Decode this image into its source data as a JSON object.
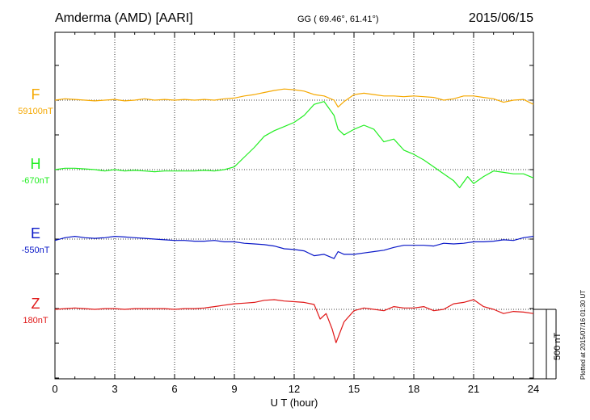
{
  "header": {
    "station": "Amderma (AMD)  [AARI]",
    "coords": "GG ( 69.46°,  61.41°)",
    "date": "2015/06/15"
  },
  "footer": {
    "plotted": "Plotted at 2015/07/16 01:30 UT"
  },
  "scale_bar": {
    "label": "500 nT",
    "value_nT": 500
  },
  "chart_data": {
    "type": "line",
    "xlabel": "U T (hour)",
    "xlim": [
      0,
      24
    ],
    "x_ticks": [
      "0",
      "3",
      "6",
      "9",
      "12",
      "15",
      "18",
      "21",
      "24"
    ],
    "grid": true,
    "y_unit": "nT",
    "series": [
      {
        "name": "F",
        "baseline_label": "59100nT",
        "baseline": 59100,
        "color": "#f5a800",
        "x": [
          0,
          0.5,
          1,
          1.5,
          2,
          2.5,
          3,
          3.5,
          4,
          4.5,
          5,
          5.5,
          6,
          6.5,
          7,
          7.5,
          8,
          8.5,
          9,
          9.5,
          10,
          10.5,
          11,
          11.5,
          12,
          12.5,
          13,
          13.5,
          14,
          14.2,
          14.5,
          15,
          15.5,
          16,
          16.5,
          17,
          17.5,
          18,
          18.5,
          19,
          19.5,
          20,
          20.5,
          21,
          21.5,
          22,
          22.5,
          23,
          23.5,
          24
        ],
        "y": [
          59100,
          59110,
          59105,
          59100,
          59095,
          59100,
          59105,
          59095,
          59100,
          59110,
          59100,
          59105,
          59100,
          59105,
          59100,
          59105,
          59100,
          59110,
          59115,
          59130,
          59140,
          59155,
          59170,
          59180,
          59175,
          59165,
          59140,
          59130,
          59100,
          59050,
          59090,
          59140,
          59150,
          59140,
          59130,
          59130,
          59125,
          59130,
          59125,
          59120,
          59100,
          59110,
          59130,
          59130,
          59120,
          59110,
          59085,
          59100,
          59105,
          59070
        ]
      },
      {
        "name": "H",
        "baseline_label": "-670nT",
        "baseline": -670,
        "color": "#22ee22",
        "x": [
          0,
          0.5,
          1,
          1.5,
          2,
          2.5,
          3,
          3.5,
          4,
          4.5,
          5,
          5.5,
          6,
          6.5,
          7,
          7.5,
          8,
          8.5,
          9,
          9.5,
          10,
          10.5,
          11,
          11.5,
          12,
          12.5,
          13,
          13.5,
          14,
          14.2,
          14.5,
          15,
          15.5,
          16,
          16.5,
          17,
          17.5,
          18,
          18.5,
          19,
          19.5,
          20,
          20.3,
          20.7,
          21,
          21.5,
          22,
          22.5,
          23,
          23.5,
          24
        ],
        "y": [
          -670,
          -660,
          -660,
          -665,
          -670,
          -680,
          -670,
          -680,
          -675,
          -680,
          -685,
          -680,
          -680,
          -680,
          -680,
          -675,
          -680,
          -670,
          -650,
          -580,
          -510,
          -430,
          -390,
          -360,
          -330,
          -280,
          -200,
          -180,
          -280,
          -380,
          -420,
          -380,
          -350,
          -380,
          -470,
          -450,
          -530,
          -560,
          -600,
          -650,
          -700,
          -750,
          -800,
          -720,
          -770,
          -720,
          -680,
          -690,
          -700,
          -700,
          -730
        ]
      },
      {
        "name": "E",
        "baseline_label": "-550nT",
        "baseline": -550,
        "color": "#0a18c8",
        "x": [
          0,
          0.5,
          1,
          1.5,
          2,
          2.5,
          3,
          3.5,
          4,
          4.5,
          5,
          5.5,
          6,
          6.5,
          7,
          7.5,
          8,
          8.5,
          9,
          9.5,
          10,
          10.5,
          11,
          11.5,
          12,
          12.5,
          13,
          13.5,
          14,
          14.2,
          14.5,
          15,
          15.5,
          16,
          16.5,
          17,
          17.5,
          18,
          18.5,
          19,
          19.5,
          20,
          20.5,
          21,
          21.5,
          22,
          22.5,
          23,
          23.5,
          24
        ],
        "y": [
          -560,
          -540,
          -530,
          -540,
          -545,
          -540,
          -530,
          -535,
          -540,
          -545,
          -550,
          -555,
          -560,
          -560,
          -565,
          -565,
          -560,
          -570,
          -570,
          -580,
          -585,
          -590,
          -600,
          -620,
          -625,
          -635,
          -670,
          -660,
          -690,
          -640,
          -660,
          -660,
          -650,
          -640,
          -630,
          -610,
          -595,
          -595,
          -595,
          -600,
          -580,
          -585,
          -580,
          -570,
          -570,
          -565,
          -555,
          -560,
          -540,
          -530
        ]
      },
      {
        "name": "Z",
        "baseline_label": "180nT",
        "baseline": 180,
        "color": "#e01818",
        "x": [
          0,
          0.5,
          1,
          1.5,
          2,
          2.5,
          3,
          3.5,
          4,
          4.5,
          5,
          5.5,
          6,
          6.5,
          7,
          7.5,
          8,
          8.5,
          9,
          9.5,
          10,
          10.5,
          11,
          11.5,
          12,
          12.5,
          13,
          13.3,
          13.6,
          13.9,
          14.1,
          14.5,
          15,
          15.5,
          16,
          16.5,
          17,
          17.5,
          18,
          18.5,
          19,
          19.5,
          20,
          20.5,
          21,
          21.5,
          22,
          22.5,
          23,
          23.5,
          24
        ],
        "y": [
          180,
          185,
          190,
          185,
          180,
          185,
          185,
          180,
          185,
          185,
          185,
          185,
          180,
          185,
          185,
          190,
          200,
          210,
          220,
          225,
          230,
          245,
          250,
          240,
          235,
          230,
          215,
          110,
          150,
          40,
          -60,
          90,
          170,
          190,
          180,
          170,
          200,
          190,
          190,
          200,
          170,
          180,
          220,
          230,
          250,
          200,
          180,
          150,
          165,
          160,
          150
        ]
      }
    ]
  }
}
